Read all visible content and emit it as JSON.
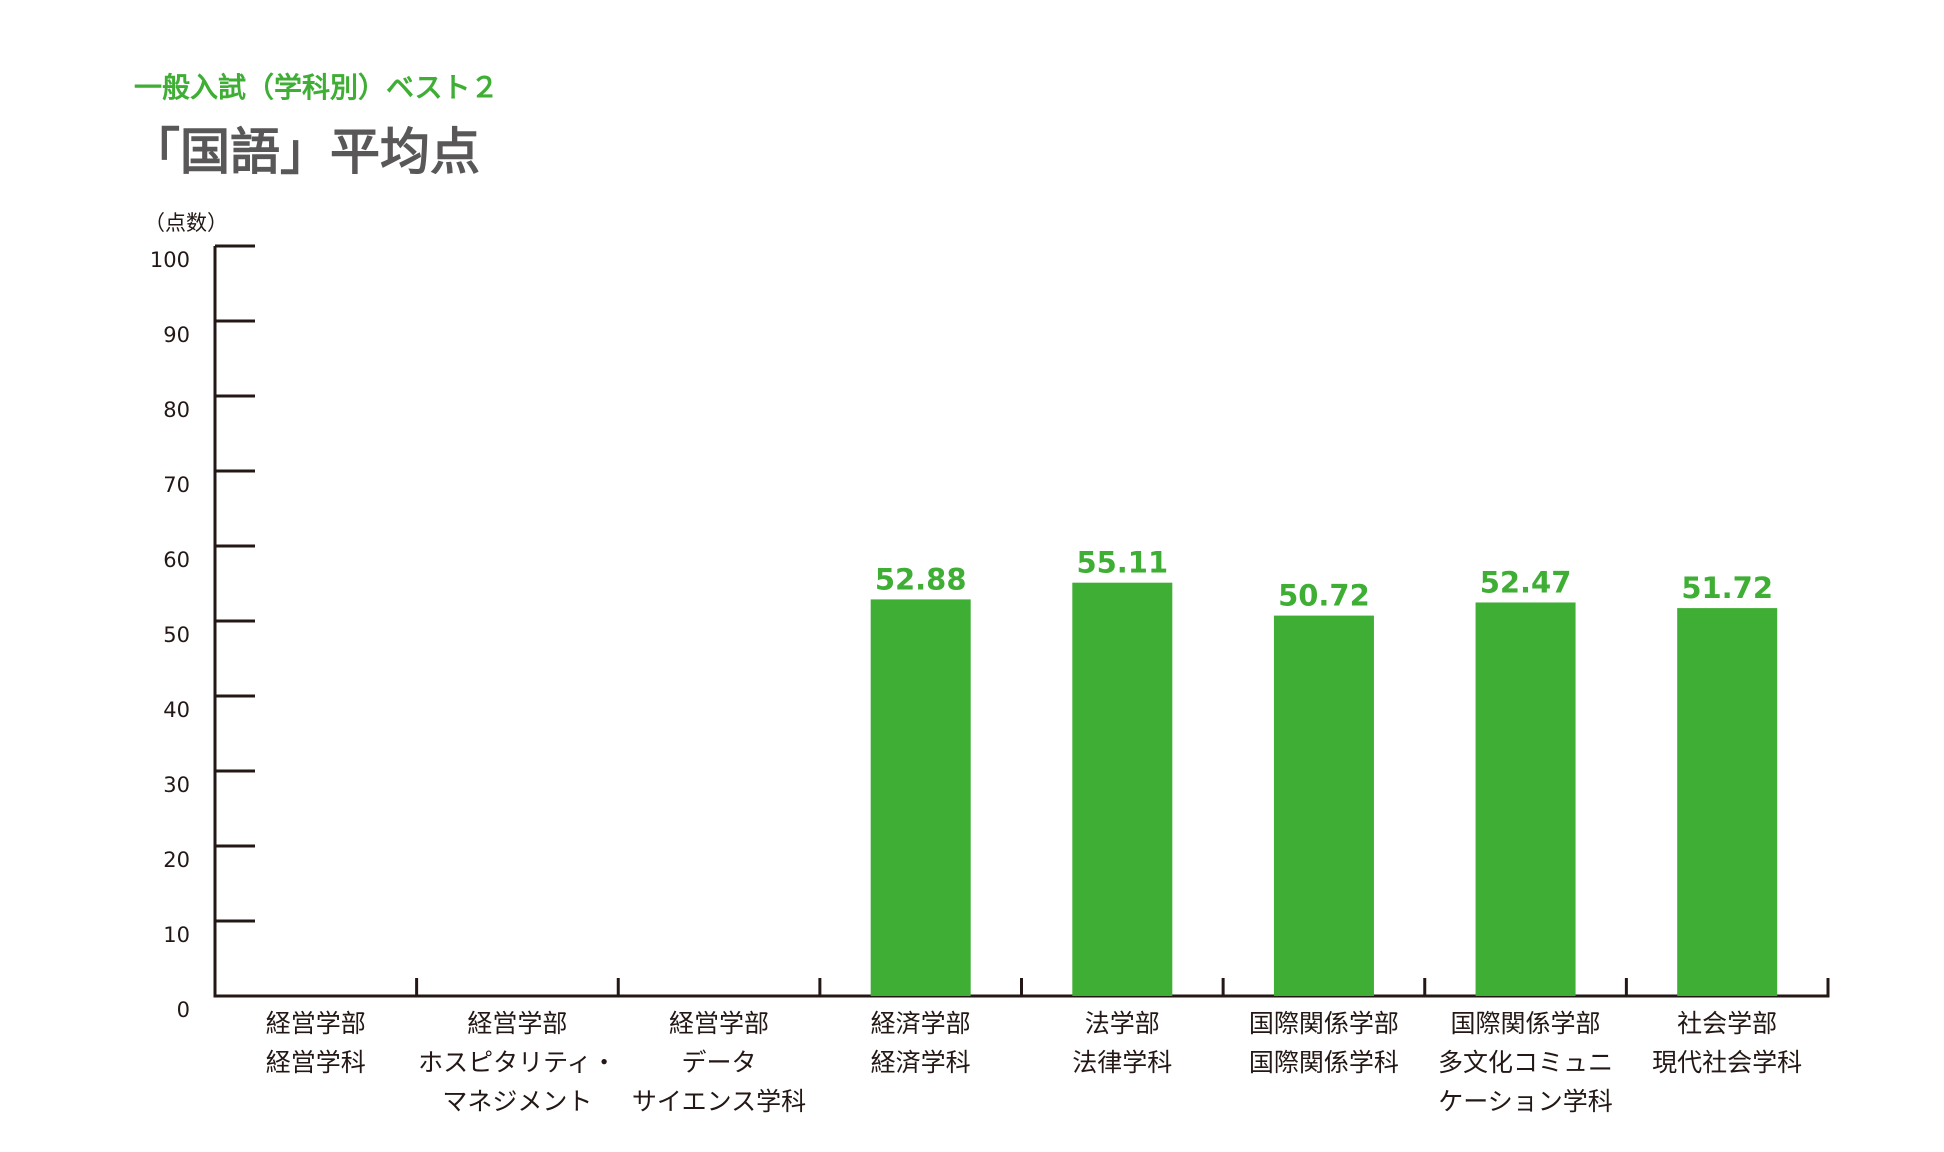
{
  "header": {
    "subtitle": "一般入試（学科別）ベスト２",
    "title": "「国語」平均点"
  },
  "chart_data": {
    "type": "bar",
    "ylabel": "（点数）",
    "ylim": [
      0,
      100
    ],
    "yticks": [
      0,
      10,
      20,
      30,
      40,
      50,
      60,
      70,
      80,
      90,
      100
    ],
    "categories": [
      [
        "経営学部",
        "経営学科"
      ],
      [
        "経営学部",
        "ホスピタリティ・",
        "マネジメント"
      ],
      [
        "経営学部",
        "データ",
        "サイエンス学科"
      ],
      [
        "経済学部",
        "経済学科"
      ],
      [
        "法学部",
        "法律学科"
      ],
      [
        "国際関係学部",
        "国際関係学科"
      ],
      [
        "国際関係学部",
        "多文化コミュニ",
        "ケーション学科"
      ],
      [
        "社会学部",
        "現代社会学科"
      ]
    ],
    "values": [
      null,
      null,
      null,
      52.88,
      55.11,
      50.72,
      52.47,
      51.72
    ],
    "value_labels": [
      "",
      "",
      "",
      "52.88",
      "55.11",
      "50.72",
      "52.47",
      "51.72"
    ],
    "bar_color": "#3eae34",
    "grid": false
  }
}
